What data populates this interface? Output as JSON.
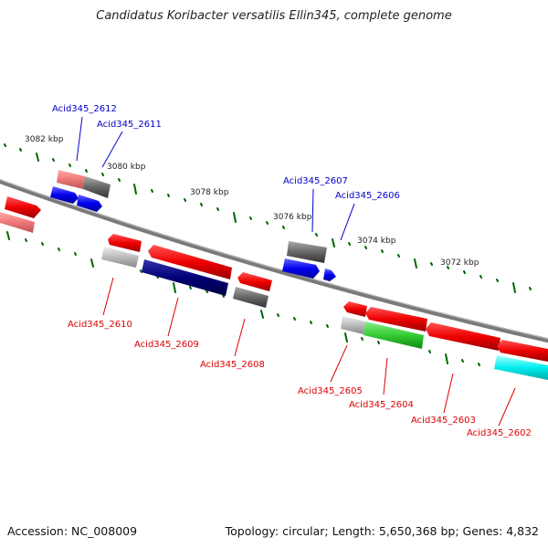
{
  "title": "Candidatus Koribacter versatilis Ellin345, complete genome",
  "footer": {
    "accession": "Accession: NC_008009",
    "summary": "Topology: circular; Length: 5,650,368 bp; Genes: 4,832"
  },
  "kbp_labels": [
    "3082 kbp",
    "3080 kbp",
    "3078 kbp",
    "3076 kbp",
    "3074 kbp",
    "3072 kbp"
  ],
  "gene_labels_top": [
    "Acid345_2612",
    "Acid345_2611",
    "Acid345_2607",
    "Acid345_2606"
  ],
  "gene_labels_bottom": [
    "Acid345_2610",
    "Acid345_2609",
    "Acid345_2608",
    "Acid345_2605",
    "Acid345_2604",
    "Acid345_2603",
    "Acid345_2602"
  ],
  "colors": {
    "red": "#ee0000",
    "light_red": "#ee7777",
    "blue": "#0000ee",
    "navy": "#000077",
    "gray": "#666666",
    "light_gray": "#bbbbbb",
    "green": "#33cc33",
    "cyan": "#00eeee",
    "backbone": "#808080",
    "tick": "#006600"
  }
}
